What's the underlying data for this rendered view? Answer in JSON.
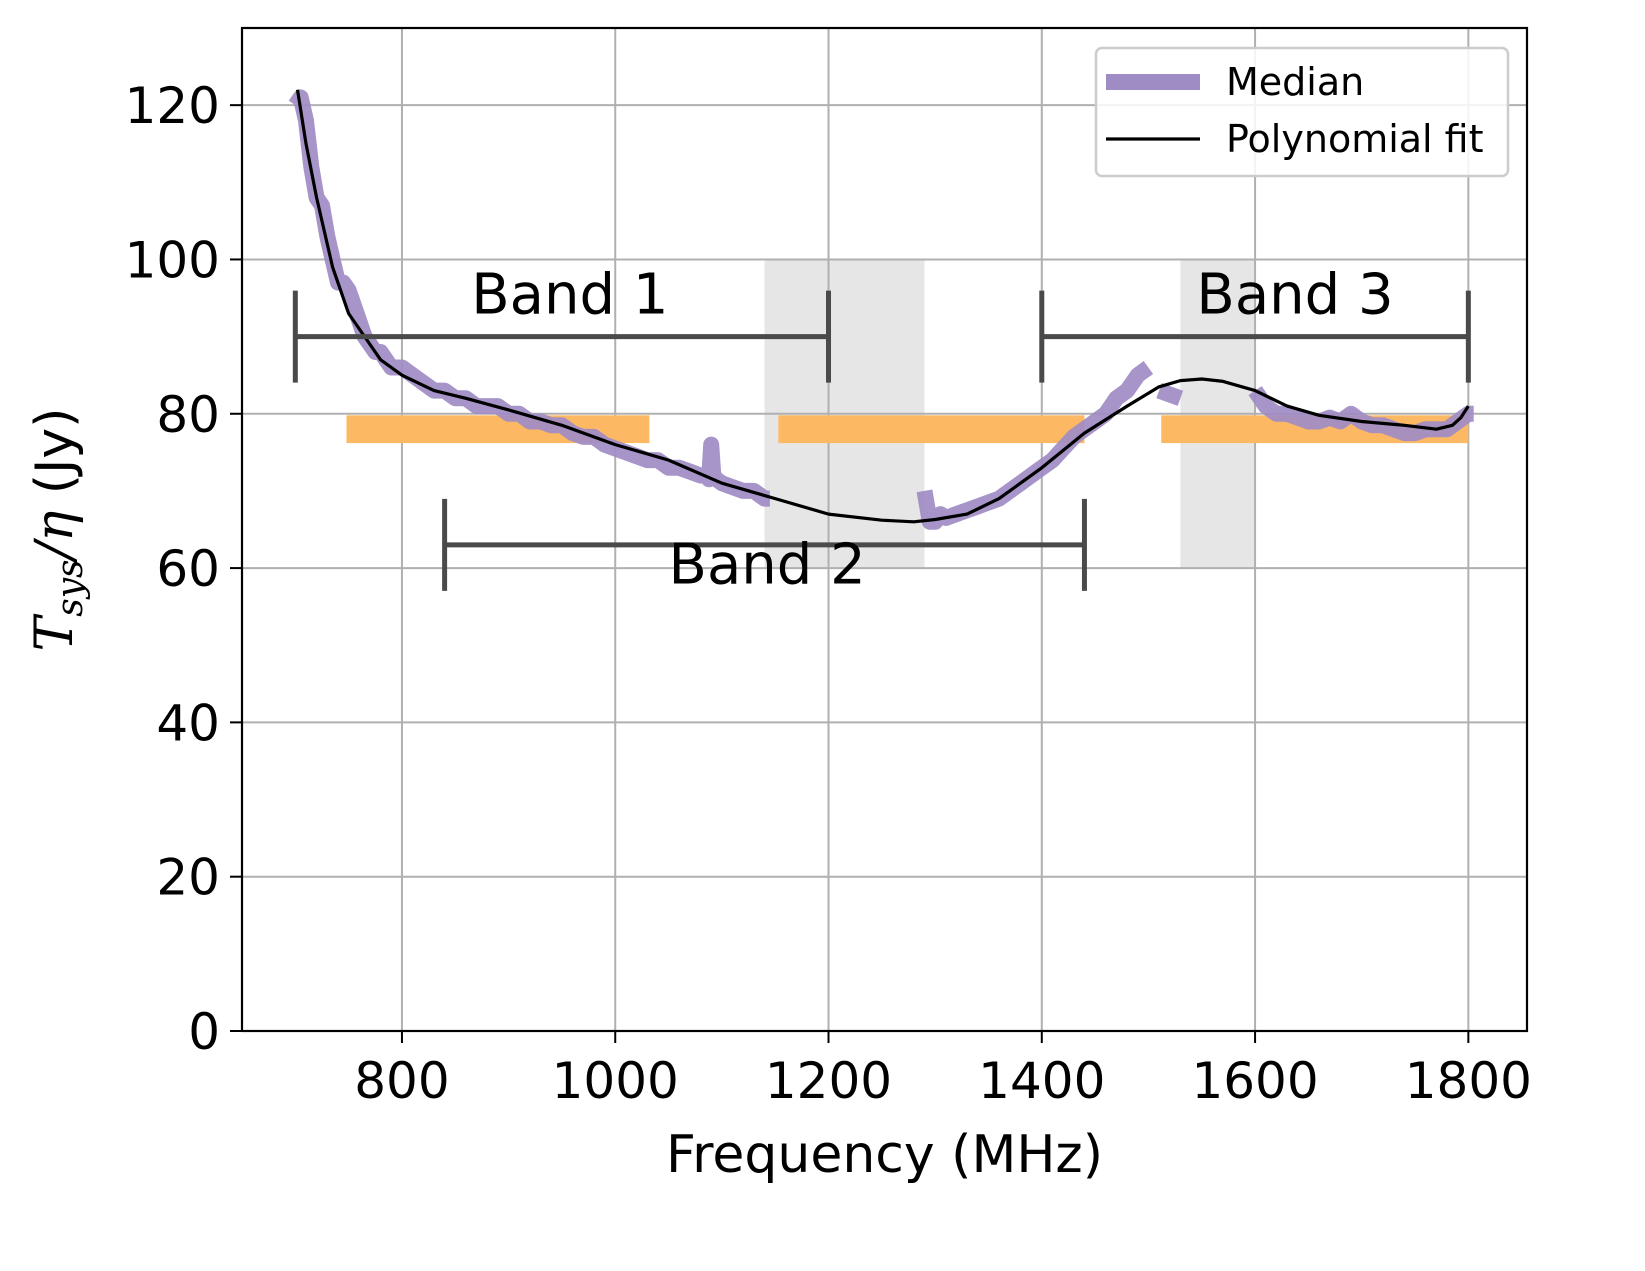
{
  "chart_data": {
    "type": "line",
    "title": "",
    "xlabel": "Frequency (MHz)",
    "ylabel": {
      "main": "T",
      "sub": "sys",
      "rest": "/η",
      "unit": " (Jy)"
    },
    "xlim": [
      650,
      1855
    ],
    "ylim": [
      0,
      130
    ],
    "xticks": [
      800,
      1000,
      1200,
      1400,
      1600,
      1800
    ],
    "yticks": [
      0,
      20,
      40,
      60,
      80,
      100,
      120
    ],
    "grid": true,
    "legend_position": "top-right",
    "colors": {
      "median": "#a08cc4",
      "fit": "#000000",
      "orange": "#fdb863",
      "gray": "#e6e6e6",
      "bracket": "#4a4a4a",
      "grid": "#b0b0b0"
    },
    "series": [
      {
        "name": "Median",
        "segments": [
          {
            "x": [
              700,
              705,
              710,
              715,
              720,
              725,
              730,
              735,
              740,
              745,
              750,
              755,
              760,
              765,
              770,
              775,
              780,
              790,
              800,
              810,
              820,
              830,
              840,
              850,
              860,
              870,
              880,
              890,
              900,
              910,
              920,
              930,
              940,
              950,
              960,
              970,
              980,
              990,
              1000,
              1010,
              1020,
              1030,
              1040,
              1050,
              1060,
              1070,
              1080,
              1085,
              1088,
              1090,
              1092,
              1095,
              1100,
              1110,
              1120,
              1130,
              1140,
              1145
            ],
            "y": [
              120,
              121,
              118,
              112,
              108,
              107,
              103,
              100,
              97,
              97,
              96,
              94,
              92,
              90,
              89,
              88,
              88,
              86,
              86,
              85,
              84,
              83,
              83,
              82,
              82,
              81,
              81,
              81,
              80,
              80,
              79,
              79,
              78.5,
              78.5,
              77.5,
              77,
              77,
              76,
              75.5,
              75,
              74.5,
              74,
              74,
              73,
              73,
              72.5,
              72,
              72,
              71.5,
              76,
              72,
              71.5,
              71,
              70.5,
              70,
              70,
              69,
              69
            ]
          },
          {
            "x": [
              1290,
              1295,
              1300,
              1305,
              1310,
              1320,
              1330,
              1340,
              1350,
              1360,
              1370,
              1380,
              1390,
              1400,
              1410,
              1420,
              1430,
              1440,
              1450,
              1460,
              1470,
              1480,
              1490,
              1500
            ],
            "y": [
              70,
              66,
              66,
              67,
              66.5,
              67,
              67.5,
              68,
              68.5,
              69,
              70,
              71,
              72,
              73,
              74,
              75.5,
              77,
              78,
              79,
              80,
              82,
              83,
              85,
              86
            ]
          },
          {
            "x": [
              1510,
              1520,
              1530
            ],
            "y": [
              83,
              82.5,
              82
            ]
          },
          {
            "x": [
              1600,
              1610,
              1620,
              1630,
              1640,
              1650,
              1660,
              1670,
              1680,
              1690,
              1700,
              1710,
              1720,
              1730,
              1740,
              1750,
              1760,
              1770,
              1780,
              1790,
              1800,
              1805
            ],
            "y": [
              83,
              81,
              80,
              80,
              79.5,
              79,
              79,
              79.5,
              79,
              80,
              79,
              78.5,
              78.5,
              78,
              77.5,
              77.5,
              78,
              78,
              78,
              79,
              80,
              80
            ]
          }
        ]
      },
      {
        "name": "Polynomial fit",
        "x": [
          702,
          710,
          720,
          735,
          750,
          765,
          780,
          800,
          830,
          860,
          900,
          950,
          1000,
          1050,
          1100,
          1150,
          1200,
          1250,
          1280,
          1300,
          1330,
          1360,
          1400,
          1440,
          1480,
          1510,
          1530,
          1550,
          1570,
          1600,
          1630,
          1660,
          1700,
          1740,
          1770,
          1785,
          1793,
          1800
        ],
        "y": [
          122,
          115,
          108,
          99,
          93,
          90,
          87,
          85,
          83,
          82,
          80.5,
          78.5,
          76,
          74,
          71,
          69,
          67,
          66.2,
          66,
          66.3,
          67,
          69,
          73,
          77.5,
          81,
          83.5,
          84.3,
          84.5,
          84.2,
          83,
          81,
          79.8,
          79,
          78.5,
          78,
          78.5,
          79.5,
          81
        ]
      }
    ],
    "orange_bars": [
      {
        "x0": 748,
        "x1": 1032,
        "y0": 76.2,
        "y1": 79.8
      },
      {
        "x0": 1153,
        "x1": 1440,
        "y0": 76.2,
        "y1": 79.8
      },
      {
        "x0": 1512,
        "x1": 1800,
        "y0": 76.2,
        "y1": 79.8
      }
    ],
    "gray_regions": [
      {
        "x0": 1140,
        "x1": 1290,
        "y0": 60,
        "y1": 100
      },
      {
        "x0": 1530,
        "x1": 1600,
        "y0": 60,
        "y1": 100
      }
    ],
    "bands": [
      {
        "label": "Band 1",
        "x0": 700,
        "x1": 1200,
        "y": 90,
        "label_x": 865,
        "label_y": 93
      },
      {
        "label": "Band 2",
        "x0": 840,
        "x1": 1440,
        "y": 63,
        "label_x": 1050,
        "label_y": 58
      },
      {
        "label": "Band 3",
        "x0": 1400,
        "x1": 1800,
        "y": 90,
        "label_x": 1545,
        "label_y": 93
      }
    ]
  }
}
